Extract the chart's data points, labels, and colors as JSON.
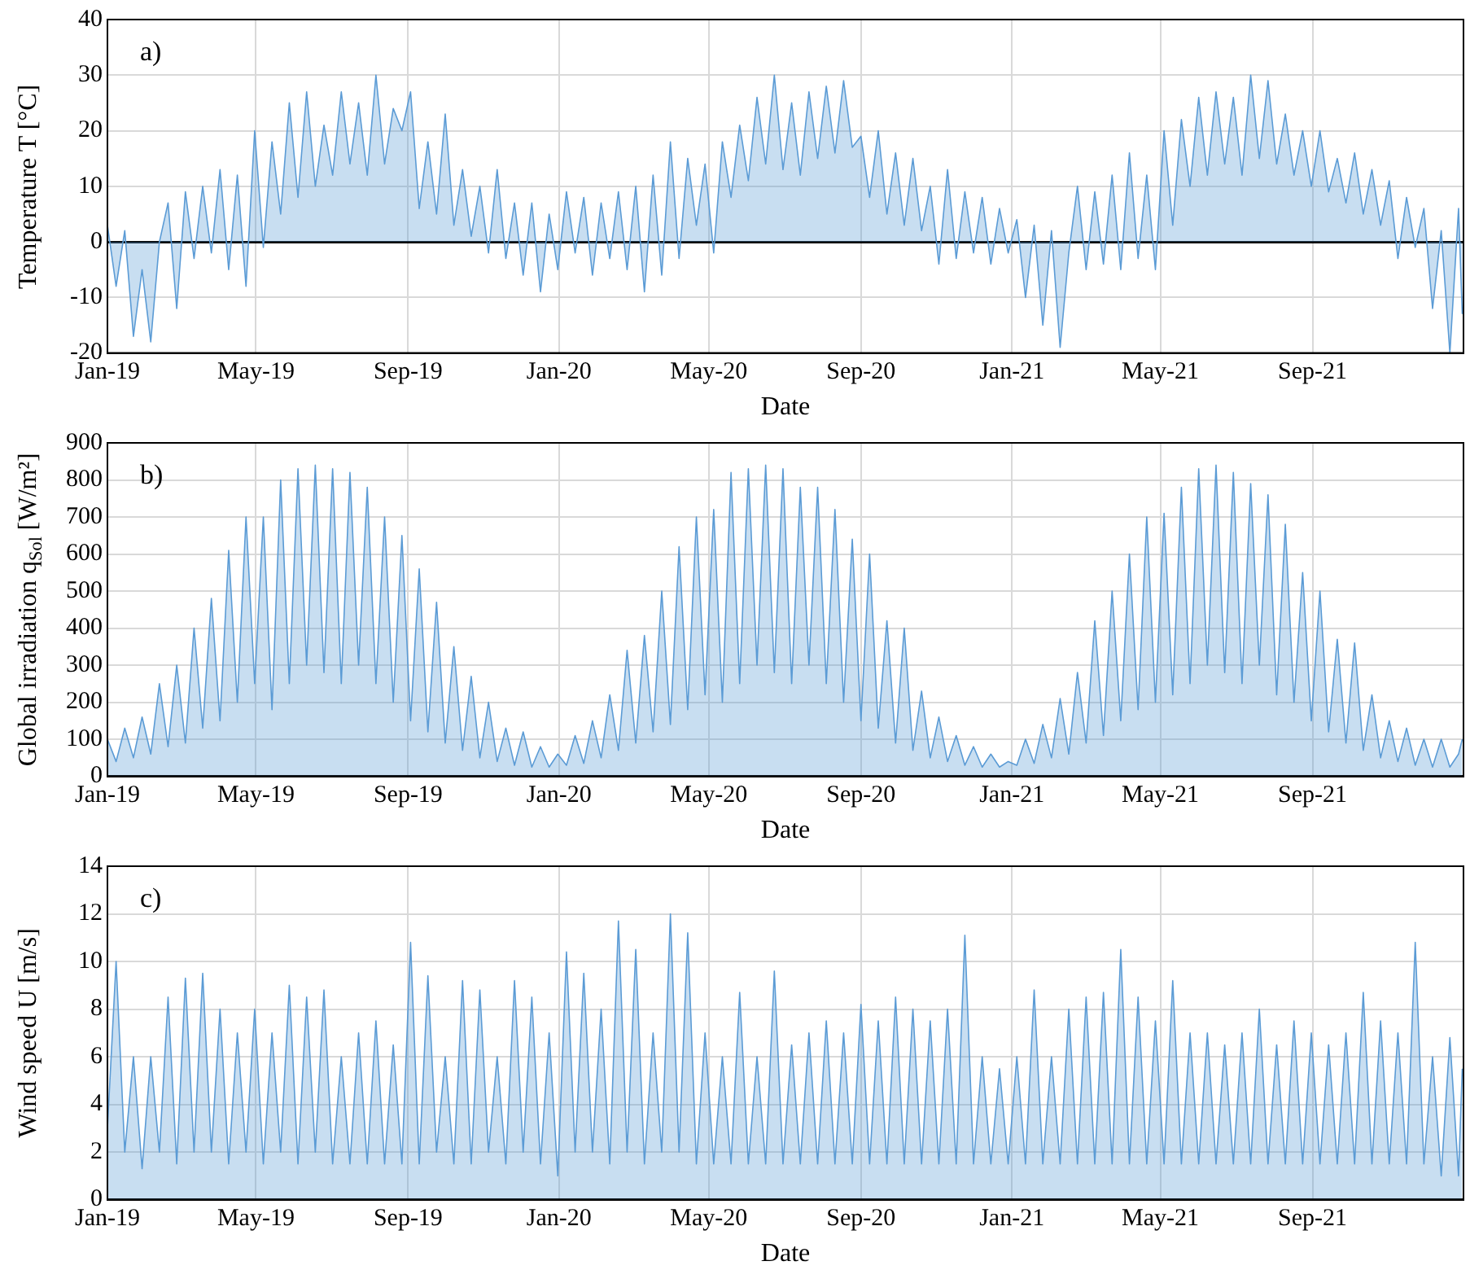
{
  "chart_data": [
    {
      "type": "area",
      "annotations": [
        "a)"
      ],
      "xlabel": "Date",
      "ylabel": "Temperature T [°C]",
      "color": "#5b9bd5",
      "grid": true,
      "xlim": [
        "2019-01-01",
        "2022-01-01"
      ],
      "xticks": [
        {
          "value": "2019-01",
          "label": "Jan-19"
        },
        {
          "value": "2019-05",
          "label": "May-19"
        },
        {
          "value": "2019-09",
          "label": "Sep-19"
        },
        {
          "value": "2020-01",
          "label": "Jan-20"
        },
        {
          "value": "2020-05",
          "label": "May-20"
        },
        {
          "value": "2020-09",
          "label": "Sep-20"
        },
        {
          "value": "2021-01",
          "label": "Jan-21"
        },
        {
          "value": "2021-05",
          "label": "May-21"
        },
        {
          "value": "2021-09",
          "label": "Sep-21"
        }
      ],
      "ylim": [
        -20,
        40
      ],
      "yticks": [
        -20,
        -10,
        0,
        10,
        20,
        30,
        40
      ],
      "x": [
        "2019-01-01",
        "2019-01-08",
        "2019-01-15",
        "2019-01-22",
        "2019-01-29",
        "2019-02-05",
        "2019-02-12",
        "2019-02-19",
        "2019-02-26",
        "2019-03-05",
        "2019-03-12",
        "2019-03-19",
        "2019-03-26",
        "2019-04-02",
        "2019-04-09",
        "2019-04-16",
        "2019-04-23",
        "2019-04-30",
        "2019-05-07",
        "2019-05-14",
        "2019-05-21",
        "2019-05-28",
        "2019-06-04",
        "2019-06-11",
        "2019-06-18",
        "2019-06-25",
        "2019-07-02",
        "2019-07-09",
        "2019-07-16",
        "2019-07-23",
        "2019-07-30",
        "2019-08-06",
        "2019-08-13",
        "2019-08-20",
        "2019-08-27",
        "2019-09-03",
        "2019-09-10",
        "2019-09-17",
        "2019-09-24",
        "2019-10-01",
        "2019-10-08",
        "2019-10-15",
        "2019-10-22",
        "2019-10-29",
        "2019-11-05",
        "2019-11-12",
        "2019-11-19",
        "2019-11-26",
        "2019-12-03",
        "2019-12-10",
        "2019-12-17",
        "2019-12-24",
        "2019-12-31",
        "2020-01-07",
        "2020-01-14",
        "2020-01-21",
        "2020-01-28",
        "2020-02-04",
        "2020-02-11",
        "2020-02-18",
        "2020-02-25",
        "2020-03-03",
        "2020-03-10",
        "2020-03-17",
        "2020-03-24",
        "2020-03-31",
        "2020-04-07",
        "2020-04-14",
        "2020-04-21",
        "2020-04-28",
        "2020-05-05",
        "2020-05-12",
        "2020-05-19",
        "2020-05-26",
        "2020-06-02",
        "2020-06-09",
        "2020-06-16",
        "2020-06-23",
        "2020-06-30",
        "2020-07-07",
        "2020-07-14",
        "2020-07-21",
        "2020-07-28",
        "2020-08-04",
        "2020-08-11",
        "2020-08-18",
        "2020-08-25",
        "2020-09-01",
        "2020-09-08",
        "2020-09-15",
        "2020-09-22",
        "2020-09-29",
        "2020-10-06",
        "2020-10-13",
        "2020-10-20",
        "2020-10-27",
        "2020-11-03",
        "2020-11-10",
        "2020-11-17",
        "2020-11-24",
        "2020-12-01",
        "2020-12-08",
        "2020-12-15",
        "2020-12-22",
        "2020-12-29",
        "2021-01-05",
        "2021-01-12",
        "2021-01-19",
        "2021-01-26",
        "2021-02-02",
        "2021-02-09",
        "2021-02-16",
        "2021-02-23",
        "2021-03-02",
        "2021-03-09",
        "2021-03-16",
        "2021-03-23",
        "2021-03-30",
        "2021-04-06",
        "2021-04-13",
        "2021-04-20",
        "2021-04-27",
        "2021-05-04",
        "2021-05-11",
        "2021-05-18",
        "2021-05-25",
        "2021-06-01",
        "2021-06-08",
        "2021-06-15",
        "2021-06-22",
        "2021-06-29",
        "2021-07-06",
        "2021-07-13",
        "2021-07-20",
        "2021-07-27",
        "2021-08-03",
        "2021-08-10",
        "2021-08-17",
        "2021-08-24",
        "2021-08-31",
        "2021-09-07",
        "2021-09-14",
        "2021-09-21",
        "2021-09-28",
        "2021-10-05",
        "2021-10-12",
        "2021-10-19",
        "2021-10-26",
        "2021-11-02",
        "2021-11-09",
        "2021-11-16",
        "2021-11-23",
        "2021-11-30",
        "2021-12-07",
        "2021-12-14",
        "2021-12-21",
        "2021-12-28",
        "2021-12-31"
      ],
      "values": [
        3,
        -8,
        2,
        -17,
        -5,
        -18,
        0,
        7,
        -12,
        9,
        -3,
        10,
        -2,
        13,
        -5,
        12,
        -8,
        20,
        -1,
        18,
        5,
        25,
        8,
        27,
        10,
        21,
        12,
        27,
        14,
        25,
        12,
        30,
        14,
        24,
        20,
        27,
        6,
        18,
        5,
        23,
        3,
        13,
        1,
        10,
        -2,
        13,
        -3,
        7,
        -6,
        7,
        -9,
        5,
        -5,
        9,
        -2,
        8,
        -6,
        7,
        -3,
        9,
        -5,
        10,
        -9,
        12,
        -6,
        18,
        -3,
        15,
        3,
        14,
        -2,
        18,
        8,
        21,
        11,
        26,
        14,
        30,
        13,
        25,
        12,
        27,
        15,
        28,
        16,
        29,
        17,
        19,
        8,
        20,
        5,
        16,
        3,
        15,
        2,
        10,
        -4,
        13,
        -3,
        9,
        -2,
        8,
        -4,
        6,
        -2,
        4,
        -10,
        3,
        -15,
        2,
        -19,
        -2,
        10,
        -5,
        9,
        -4,
        12,
        -5,
        16,
        -3,
        12,
        -5,
        20,
        3,
        22,
        10,
        26,
        12,
        27,
        14,
        26,
        12,
        30,
        15,
        29,
        14,
        23,
        12,
        20,
        10,
        20,
        9,
        15,
        7,
        16,
        5,
        13,
        3,
        11,
        -3,
        8,
        -1,
        6,
        -12,
        2,
        -20,
        6,
        -13
      ]
    },
    {
      "type": "area",
      "annotations": [
        "b)"
      ],
      "xlabel": "Date",
      "ylabel": "Global irradiation q$_{Sol}$ [W/m²]",
      "color": "#5b9bd5",
      "grid": true,
      "xlim": [
        "2019-01-01",
        "2022-01-01"
      ],
      "xticks": [
        {
          "value": "2019-01",
          "label": "Jan-19"
        },
        {
          "value": "2019-05",
          "label": "May-19"
        },
        {
          "value": "2019-09",
          "label": "Sep-19"
        },
        {
          "value": "2020-01",
          "label": "Jan-20"
        },
        {
          "value": "2020-05",
          "label": "May-20"
        },
        {
          "value": "2020-09",
          "label": "Sep-20"
        },
        {
          "value": "2021-01",
          "label": "Jan-21"
        },
        {
          "value": "2021-05",
          "label": "May-21"
        },
        {
          "value": "2021-09",
          "label": "Sep-21"
        }
      ],
      "ylim": [
        0,
        900
      ],
      "yticks": [
        0,
        100,
        200,
        300,
        400,
        500,
        600,
        700,
        800,
        900
      ],
      "x": [
        "2019-01-01",
        "2019-01-08",
        "2019-01-15",
        "2019-01-22",
        "2019-01-29",
        "2019-02-05",
        "2019-02-12",
        "2019-02-19",
        "2019-02-26",
        "2019-03-05",
        "2019-03-12",
        "2019-03-19",
        "2019-03-26",
        "2019-04-02",
        "2019-04-09",
        "2019-04-16",
        "2019-04-23",
        "2019-04-30",
        "2019-05-07",
        "2019-05-14",
        "2019-05-21",
        "2019-05-28",
        "2019-06-04",
        "2019-06-11",
        "2019-06-18",
        "2019-06-25",
        "2019-07-02",
        "2019-07-09",
        "2019-07-16",
        "2019-07-23",
        "2019-07-30",
        "2019-08-06",
        "2019-08-13",
        "2019-08-20",
        "2019-08-27",
        "2019-09-03",
        "2019-09-10",
        "2019-09-17",
        "2019-09-24",
        "2019-10-01",
        "2019-10-08",
        "2019-10-15",
        "2019-10-22",
        "2019-10-29",
        "2019-11-05",
        "2019-11-12",
        "2019-11-19",
        "2019-11-26",
        "2019-12-03",
        "2019-12-10",
        "2019-12-17",
        "2019-12-24",
        "2019-12-31",
        "2020-01-07",
        "2020-01-14",
        "2020-01-21",
        "2020-01-28",
        "2020-02-04",
        "2020-02-11",
        "2020-02-18",
        "2020-02-25",
        "2020-03-03",
        "2020-03-10",
        "2020-03-17",
        "2020-03-24",
        "2020-03-31",
        "2020-04-07",
        "2020-04-14",
        "2020-04-21",
        "2020-04-28",
        "2020-05-05",
        "2020-05-12",
        "2020-05-19",
        "2020-05-26",
        "2020-06-02",
        "2020-06-09",
        "2020-06-16",
        "2020-06-23",
        "2020-06-30",
        "2020-07-07",
        "2020-07-14",
        "2020-07-21",
        "2020-07-28",
        "2020-08-04",
        "2020-08-11",
        "2020-08-18",
        "2020-08-25",
        "2020-09-01",
        "2020-09-08",
        "2020-09-15",
        "2020-09-22",
        "2020-09-29",
        "2020-10-06",
        "2020-10-13",
        "2020-10-20",
        "2020-10-27",
        "2020-11-03",
        "2020-11-10",
        "2020-11-17",
        "2020-11-24",
        "2020-12-01",
        "2020-12-08",
        "2020-12-15",
        "2020-12-22",
        "2020-12-29",
        "2021-01-05",
        "2021-01-12",
        "2021-01-19",
        "2021-01-26",
        "2021-02-02",
        "2021-02-09",
        "2021-02-16",
        "2021-02-23",
        "2021-03-02",
        "2021-03-09",
        "2021-03-16",
        "2021-03-23",
        "2021-03-30",
        "2021-04-06",
        "2021-04-13",
        "2021-04-20",
        "2021-04-27",
        "2021-05-04",
        "2021-05-11",
        "2021-05-18",
        "2021-05-25",
        "2021-06-01",
        "2021-06-08",
        "2021-06-15",
        "2021-06-22",
        "2021-06-29",
        "2021-07-06",
        "2021-07-13",
        "2021-07-20",
        "2021-07-27",
        "2021-08-03",
        "2021-08-10",
        "2021-08-17",
        "2021-08-24",
        "2021-08-31",
        "2021-09-07",
        "2021-09-14",
        "2021-09-21",
        "2021-09-28",
        "2021-10-05",
        "2021-10-12",
        "2021-10-19",
        "2021-10-26",
        "2021-11-02",
        "2021-11-09",
        "2021-11-16",
        "2021-11-23",
        "2021-11-30",
        "2021-12-07",
        "2021-12-14",
        "2021-12-21",
        "2021-12-28",
        "2021-12-31"
      ],
      "values": [
        100,
        40,
        130,
        50,
        160,
        60,
        250,
        80,
        300,
        90,
        400,
        130,
        480,
        150,
        610,
        200,
        700,
        250,
        700,
        180,
        800,
        250,
        830,
        300,
        840,
        280,
        830,
        250,
        820,
        300,
        780,
        250,
        700,
        200,
        650,
        150,
        560,
        120,
        470,
        90,
        350,
        70,
        270,
        50,
        200,
        40,
        130,
        30,
        120,
        25,
        80,
        25,
        60,
        30,
        110,
        35,
        150,
        50,
        220,
        70,
        340,
        90,
        380,
        120,
        500,
        140,
        620,
        180,
        700,
        220,
        720,
        200,
        820,
        250,
        830,
        300,
        840,
        280,
        830,
        250,
        780,
        300,
        780,
        250,
        720,
        200,
        640,
        150,
        600,
        130,
        420,
        90,
        400,
        70,
        230,
        50,
        160,
        40,
        110,
        30,
        80,
        25,
        60,
        25,
        40,
        30,
        100,
        35,
        140,
        50,
        210,
        60,
        280,
        90,
        420,
        110,
        500,
        150,
        600,
        180,
        700,
        200,
        710,
        220,
        780,
        250,
        830,
        300,
        840,
        280,
        820,
        250,
        790,
        300,
        760,
        220,
        680,
        200,
        550,
        150,
        500,
        120,
        370,
        90,
        360,
        70,
        220,
        50,
        150,
        40,
        130,
        30,
        100,
        25,
        100,
        25,
        60,
        100
      ]
    },
    {
      "type": "area",
      "annotations": [
        "c)"
      ],
      "xlabel": "Date",
      "ylabel": "Wind speed U [m/s]",
      "color": "#5b9bd5",
      "grid": true,
      "xlim": [
        "2019-01-01",
        "2022-01-01"
      ],
      "xticks": [
        {
          "value": "2019-01",
          "label": "Jan-19"
        },
        {
          "value": "2019-05",
          "label": "May-19"
        },
        {
          "value": "2019-09",
          "label": "Sep-19"
        },
        {
          "value": "2020-01",
          "label": "Jan-20"
        },
        {
          "value": "2020-05",
          "label": "May-20"
        },
        {
          "value": "2020-09",
          "label": "Sep-20"
        },
        {
          "value": "2021-01",
          "label": "Jan-21"
        },
        {
          "value": "2021-05",
          "label": "May-21"
        },
        {
          "value": "2021-09",
          "label": "Sep-21"
        }
      ],
      "ylim": [
        0,
        14
      ],
      "yticks": [
        0,
        2,
        4,
        6,
        8,
        10,
        12,
        14
      ],
      "x": [
        "2019-01-01",
        "2019-01-08",
        "2019-01-15",
        "2019-01-22",
        "2019-01-29",
        "2019-02-05",
        "2019-02-12",
        "2019-02-19",
        "2019-02-26",
        "2019-03-05",
        "2019-03-12",
        "2019-03-19",
        "2019-03-26",
        "2019-04-02",
        "2019-04-09",
        "2019-04-16",
        "2019-04-23",
        "2019-04-30",
        "2019-05-07",
        "2019-05-14",
        "2019-05-21",
        "2019-05-28",
        "2019-06-04",
        "2019-06-11",
        "2019-06-18",
        "2019-06-25",
        "2019-07-02",
        "2019-07-09",
        "2019-07-16",
        "2019-07-23",
        "2019-07-30",
        "2019-08-06",
        "2019-08-13",
        "2019-08-20",
        "2019-08-27",
        "2019-09-03",
        "2019-09-10",
        "2019-09-17",
        "2019-09-24",
        "2019-10-01",
        "2019-10-08",
        "2019-10-15",
        "2019-10-22",
        "2019-10-29",
        "2019-11-05",
        "2019-11-12",
        "2019-11-19",
        "2019-11-26",
        "2019-12-03",
        "2019-12-10",
        "2019-12-17",
        "2019-12-24",
        "2019-12-31",
        "2020-01-07",
        "2020-01-14",
        "2020-01-21",
        "2020-01-28",
        "2020-02-04",
        "2020-02-11",
        "2020-02-18",
        "2020-02-25",
        "2020-03-03",
        "2020-03-10",
        "2020-03-17",
        "2020-03-24",
        "2020-03-31",
        "2020-04-07",
        "2020-04-14",
        "2020-04-21",
        "2020-04-28",
        "2020-05-05",
        "2020-05-12",
        "2020-05-19",
        "2020-05-26",
        "2020-06-02",
        "2020-06-09",
        "2020-06-16",
        "2020-06-23",
        "2020-06-30",
        "2020-07-07",
        "2020-07-14",
        "2020-07-21",
        "2020-07-28",
        "2020-08-04",
        "2020-08-11",
        "2020-08-18",
        "2020-08-25",
        "2020-09-01",
        "2020-09-08",
        "2020-09-15",
        "2020-09-22",
        "2020-09-29",
        "2020-10-06",
        "2020-10-13",
        "2020-10-20",
        "2020-10-27",
        "2020-11-03",
        "2020-11-10",
        "2020-11-17",
        "2020-11-24",
        "2020-12-01",
        "2020-12-08",
        "2020-12-15",
        "2020-12-22",
        "2020-12-29",
        "2021-01-05",
        "2021-01-12",
        "2021-01-19",
        "2021-01-26",
        "2021-02-02",
        "2021-02-09",
        "2021-02-16",
        "2021-02-23",
        "2021-03-02",
        "2021-03-09",
        "2021-03-16",
        "2021-03-23",
        "2021-03-30",
        "2021-04-06",
        "2021-04-13",
        "2021-04-20",
        "2021-04-27",
        "2021-05-04",
        "2021-05-11",
        "2021-05-18",
        "2021-05-25",
        "2021-06-01",
        "2021-06-08",
        "2021-06-15",
        "2021-06-22",
        "2021-06-29",
        "2021-07-06",
        "2021-07-13",
        "2021-07-20",
        "2021-07-27",
        "2021-08-03",
        "2021-08-10",
        "2021-08-17",
        "2021-08-24",
        "2021-08-31",
        "2021-09-07",
        "2021-09-14",
        "2021-09-21",
        "2021-09-28",
        "2021-10-05",
        "2021-10-12",
        "2021-10-19",
        "2021-10-26",
        "2021-11-02",
        "2021-11-09",
        "2021-11-16",
        "2021-11-23",
        "2021-11-30",
        "2021-12-07",
        "2021-12-14",
        "2021-12-21",
        "2021-12-28",
        "2021-12-31"
      ],
      "values": [
        3,
        10,
        2,
        6,
        1.3,
        6,
        2,
        8.5,
        1.5,
        9.3,
        2,
        9.5,
        2,
        8,
        1.5,
        7,
        2,
        8,
        1.5,
        7,
        2,
        9,
        1.5,
        8.5,
        2,
        8.8,
        1.5,
        6,
        1.5,
        7,
        1.5,
        7.5,
        1.5,
        6.5,
        1.5,
        10.8,
        1.5,
        9.4,
        2,
        6,
        1.5,
        9.2,
        1.5,
        8.8,
        2,
        6,
        1.5,
        9.2,
        2,
        8.5,
        1.5,
        7,
        1,
        10.4,
        2,
        9.5,
        2,
        8,
        1.5,
        11.7,
        2,
        10.5,
        1.5,
        7,
        2,
        12,
        2,
        11.2,
        1.5,
        7,
        1.5,
        6,
        1.5,
        8.7,
        1.5,
        6,
        1.5,
        9.6,
        1.5,
        6.5,
        1.5,
        7,
        1.5,
        7.5,
        1.5,
        7,
        1.5,
        8.2,
        1.5,
        7.5,
        1.5,
        8.5,
        1.5,
        8,
        1.5,
        7.5,
        1.5,
        8,
        1.5,
        11.1,
        1.5,
        6,
        1.5,
        5.5,
        1.5,
        6,
        1.5,
        8.8,
        1.5,
        6,
        1.5,
        8,
        1.5,
        8.5,
        1.5,
        8.7,
        1.5,
        10.5,
        1.5,
        8.5,
        1.5,
        7.5,
        1.5,
        9.2,
        1.5,
        7,
        1.5,
        7,
        1.5,
        6.5,
        1.5,
        7,
        1.5,
        8,
        1.5,
        6.5,
        1.5,
        7.5,
        1.5,
        7,
        1.5,
        6.5,
        1.5,
        7,
        1.5,
        8.7,
        1.5,
        7.5,
        1.5,
        7,
        1.5,
        10.8,
        1.5,
        6,
        1,
        6.8,
        1,
        5.5
      ]
    }
  ]
}
